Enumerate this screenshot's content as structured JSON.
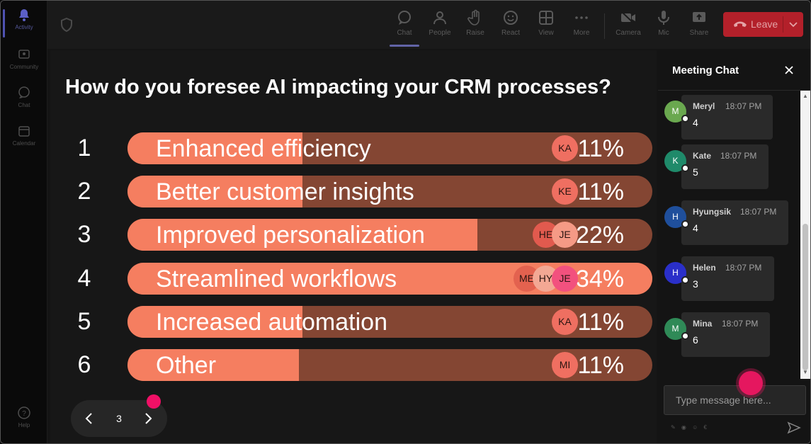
{
  "rail": {
    "items": [
      {
        "label": "Activity",
        "icon": "bell-icon"
      },
      {
        "label": "Community",
        "icon": "community-icon"
      },
      {
        "label": "Chat",
        "icon": "chat-icon"
      },
      {
        "label": "Calendar",
        "icon": "calendar-icon"
      },
      {
        "label": "Help",
        "icon": "help-icon"
      }
    ]
  },
  "toolbar": {
    "buttons": [
      {
        "label": "Chat",
        "icon": "chat-bubble-icon"
      },
      {
        "label": "People",
        "icon": "people-icon"
      },
      {
        "label": "Raise",
        "icon": "hand-icon"
      },
      {
        "label": "React",
        "icon": "smile-icon"
      },
      {
        "label": "View",
        "icon": "grid-icon"
      },
      {
        "label": "More",
        "icon": "more-icon"
      },
      {
        "label": "Camera",
        "icon": "camera-icon"
      },
      {
        "label": "Mic",
        "icon": "mic-icon"
      },
      {
        "label": "Share",
        "icon": "share-icon"
      }
    ],
    "leave_label": "Leave",
    "leave_color": "#b3202a"
  },
  "poll": {
    "question": "How do you foresee AI impacting your CRM processes?",
    "bar_color": "#f57e60",
    "track_color": "#844633",
    "options": [
      {
        "num": "1",
        "label": "Enhanced efficiency",
        "percent": "11%",
        "avatars": [
          "KA"
        ]
      },
      {
        "num": "2",
        "label": "Better customer insights",
        "percent": "11%",
        "avatars": [
          "KE"
        ]
      },
      {
        "num": "3",
        "label": "Improved personalization",
        "percent": "22%",
        "avatars": [
          "HE",
          "JE"
        ]
      },
      {
        "num": "4",
        "label": "Streamlined workflows",
        "percent": "34%",
        "avatars": [
          "ME",
          "HY",
          "JE"
        ]
      },
      {
        "num": "5",
        "label": "Increased automation",
        "percent": "11%",
        "avatars": [
          "KA"
        ]
      },
      {
        "num": "6",
        "label": "Other",
        "percent": "11%",
        "avatars": [
          "MI"
        ]
      }
    ],
    "page": "3"
  },
  "chat": {
    "title": "Meeting Chat",
    "messages": [
      {
        "initial": "M",
        "name": "Meryl",
        "time": "18:07 PM",
        "text": "4",
        "color": "#6aa84f"
      },
      {
        "initial": "K",
        "name": "Kate",
        "time": "18:07 PM",
        "text": "5",
        "color": "#1f8a6a"
      },
      {
        "initial": "H",
        "name": "Hyungsik",
        "time": "18:07 PM",
        "text": "4",
        "color": "#1f4f9c"
      },
      {
        "initial": "H",
        "name": "Helen",
        "time": "18:07 PM",
        "text": "3",
        "color": "#2a2fc9"
      },
      {
        "initial": "M",
        "name": "Mina",
        "time": "18:07 PM",
        "text": "6",
        "color": "#2f8a57"
      }
    ],
    "input_placeholder": "Type message here..."
  }
}
